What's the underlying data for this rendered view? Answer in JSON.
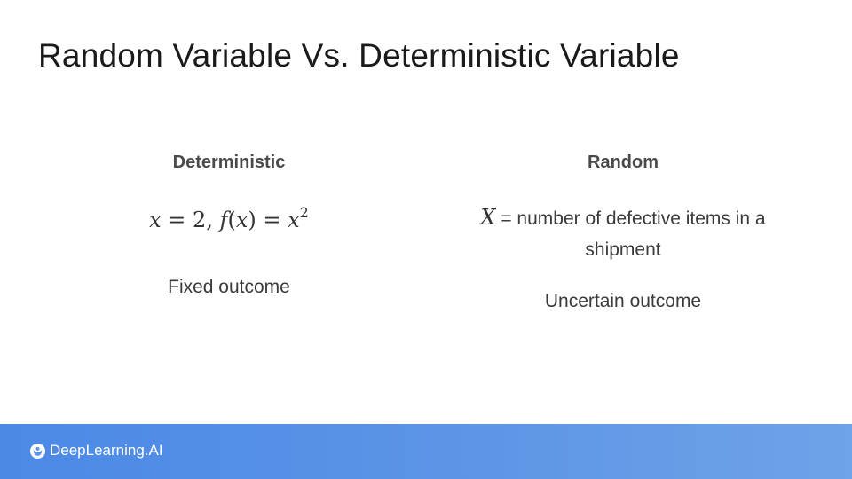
{
  "slide": {
    "title": "Random Variable Vs. Deterministic Variable"
  },
  "deterministic": {
    "heading": "Deterministic",
    "formula": {
      "x": "x",
      "eq1": " = 2, ",
      "f": "f",
      "fx_open": "(",
      "fx_var": "x",
      "fx_close": ") = ",
      "x2": "x",
      "exp": "2"
    },
    "outcome": "Fixed outcome"
  },
  "random": {
    "heading": "Random",
    "variable": "X",
    "definition": " = number of defective items in a shipment",
    "outcome": "Uncertain outcome"
  },
  "footer": {
    "brand": "DeepLearning.AI",
    "brand_icon": "deeplearning-logo-icon"
  }
}
